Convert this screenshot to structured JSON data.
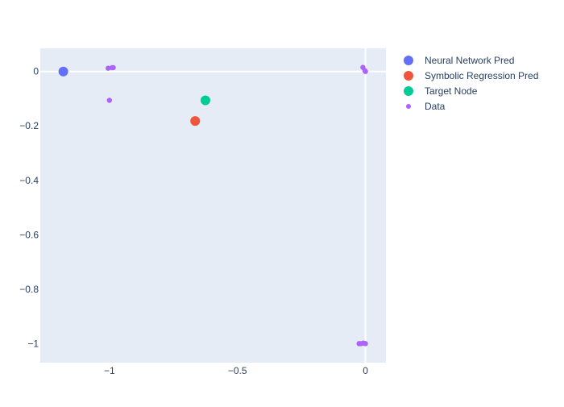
{
  "chart_data": {
    "type": "scatter",
    "title": "",
    "xlabel": "",
    "ylabel": "",
    "xlim": [
      -1.27,
      0.08
    ],
    "ylim": [
      -1.07,
      0.085
    ],
    "x_ticks": [
      {
        "value": -1,
        "label": "−1"
      },
      {
        "value": -0.5,
        "label": "−0.5"
      },
      {
        "value": 0,
        "label": "0"
      }
    ],
    "y_ticks": [
      {
        "value": 0,
        "label": "0"
      },
      {
        "value": -0.2,
        "label": "−0.2"
      },
      {
        "value": -0.4,
        "label": "−0.4"
      },
      {
        "value": -0.6,
        "label": "−0.6"
      },
      {
        "value": -0.8,
        "label": "−0.8"
      },
      {
        "value": -1,
        "label": "−1"
      }
    ],
    "grid": false,
    "zero_lines": true,
    "legend_position": "right",
    "series": [
      {
        "name": "Neural Network Pred",
        "color": "#636efa",
        "marker_size": "large",
        "points": [
          {
            "x": -1.18,
            "y": 0.0
          }
        ]
      },
      {
        "name": "Symbolic Regression Pred",
        "color": "#ef553b",
        "marker_size": "large",
        "points": [
          {
            "x": -0.665,
            "y": -0.182
          }
        ]
      },
      {
        "name": "Target Node",
        "color": "#00cc96",
        "marker_size": "large",
        "points": [
          {
            "x": -0.625,
            "y": -0.106
          }
        ]
      },
      {
        "name": "Data",
        "color": "#ab63fa",
        "marker_size": "small",
        "points": [
          {
            "x": -1.005,
            "y": 0.012
          },
          {
            "x": -0.99,
            "y": 0.014
          },
          {
            "x": -0.985,
            "y": 0.014
          },
          {
            "x": -1.0,
            "y": -0.106
          },
          {
            "x": -0.01,
            "y": 0.015
          },
          {
            "x": -0.002,
            "y": 0.003
          },
          {
            "x": 0.0,
            "y": 0.0
          },
          {
            "x": -0.025,
            "y": -1.0
          },
          {
            "x": -0.018,
            "y": -1.0
          },
          {
            "x": -0.008,
            "y": -0.998
          },
          {
            "x": 0.0,
            "y": -1.0
          }
        ]
      }
    ]
  }
}
